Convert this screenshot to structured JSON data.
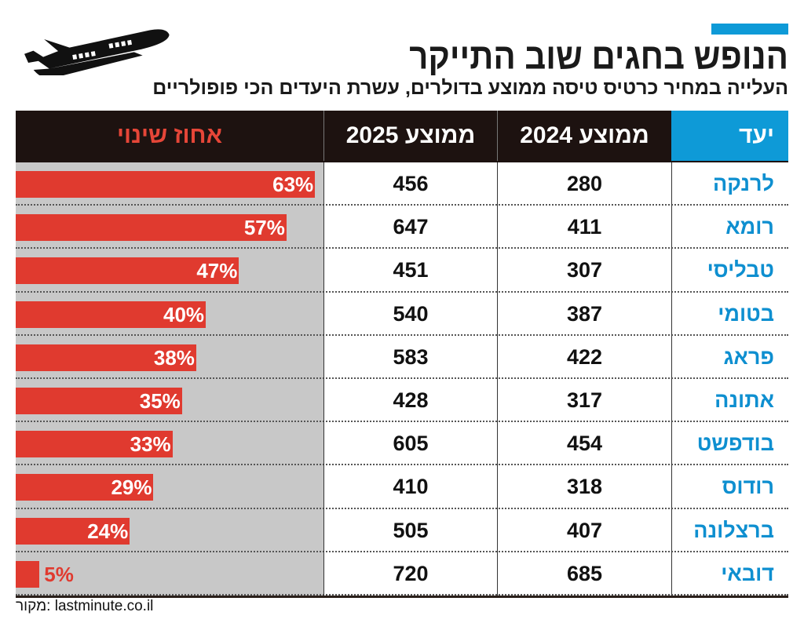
{
  "title": "הנופש בחגים שוב התייקר",
  "subtitle": "העלייה במחיר כרטיס טיסה ממוצע בדולרים, עשרת היעדים הכי פופולריים",
  "icon": "airplane-icon",
  "colors": {
    "accent": "#0e9ad7",
    "bar": "#e03a2f",
    "header": "#1d1210",
    "bar_bg": "#c8c8c8"
  },
  "source": "מקור: lastminute.co.il",
  "chart_data": {
    "type": "table",
    "columns": [
      "יעד",
      "ממוצע 2024",
      "ממוצע 2025",
      "אחוז שינוי"
    ],
    "rows": [
      {
        "dest": "לרנקה",
        "avg2024": "280",
        "avg2025": "456",
        "change": 63,
        "label": "63%"
      },
      {
        "dest": "רומא",
        "avg2024": "411",
        "avg2025": "647",
        "change": 57,
        "label": "57%"
      },
      {
        "dest": "טבליסי",
        "avg2024": "307",
        "avg2025": "451",
        "change": 47,
        "label": "47%"
      },
      {
        "dest": "בטומי",
        "avg2024": "387",
        "avg2025": "540",
        "change": 40,
        "label": "40%"
      },
      {
        "dest": "פראג",
        "avg2024": "422",
        "avg2025": "583",
        "change": 38,
        "label": "38%"
      },
      {
        "dest": "אתונה",
        "avg2024": "317",
        "avg2025": "428",
        "change": 35,
        "label": "35%"
      },
      {
        "dest": "בודפשט",
        "avg2024": "454",
        "avg2025": "605",
        "change": 33,
        "label": "33%"
      },
      {
        "dest": "רודוס",
        "avg2024": "318",
        "avg2025": "410",
        "change": 29,
        "label": "29%"
      },
      {
        "dest": "ברצלונה",
        "avg2024": "407",
        "avg2025": "505",
        "change": 24,
        "label": "24%"
      },
      {
        "dest": "דובאי",
        "avg2024": "685",
        "avg2025": "720",
        "change": 5,
        "label": "5%"
      }
    ]
  }
}
